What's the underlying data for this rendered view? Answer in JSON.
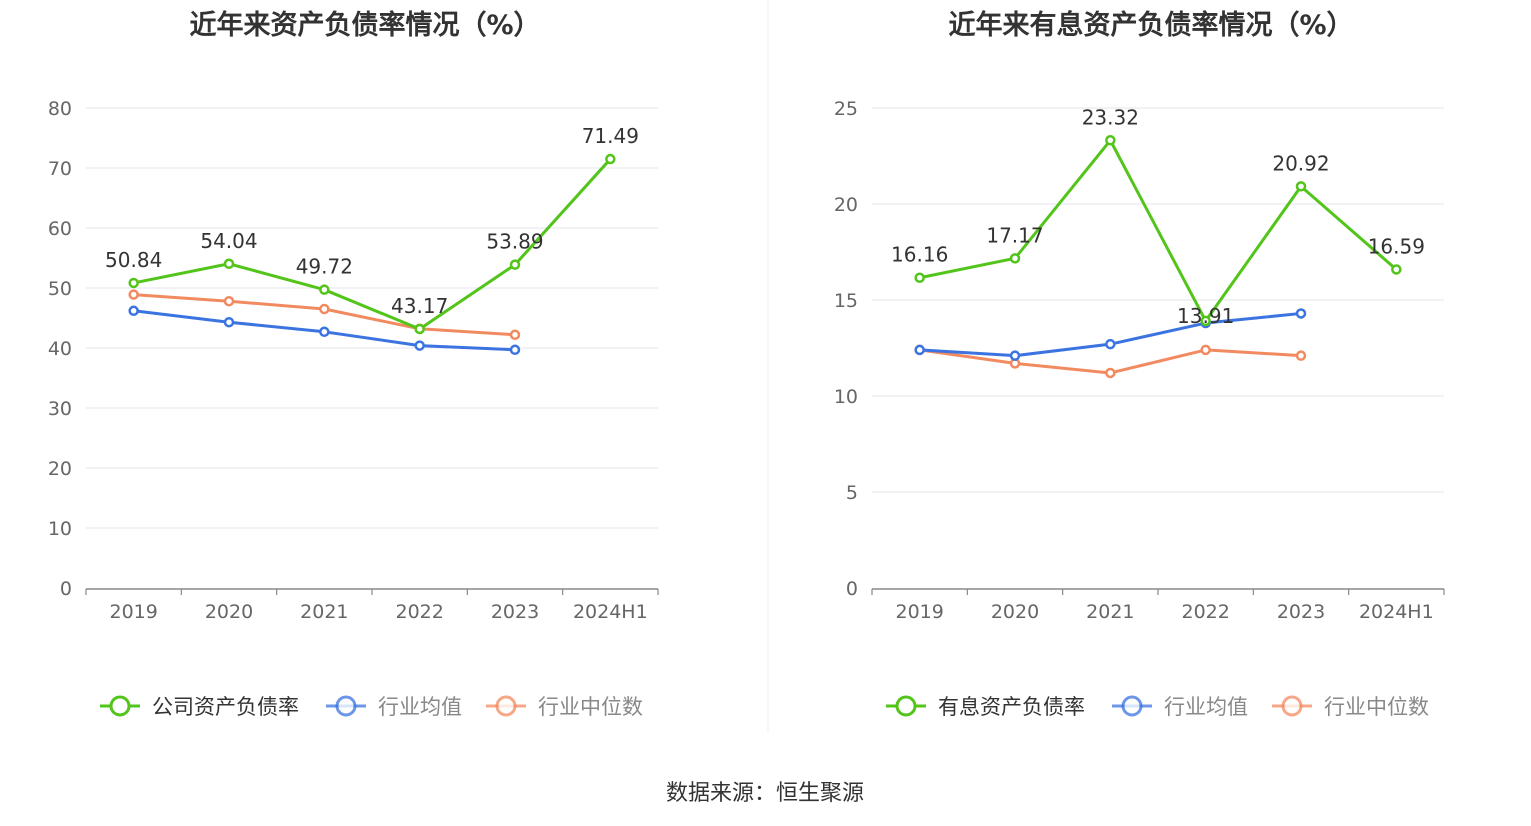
{
  "source": "数据来源：恒生聚源",
  "colors": {
    "green": "#52c41a",
    "blue": "#3b74e0",
    "orange": "#f28a60",
    "grid": "#e4e6ee",
    "axis": "#888888"
  },
  "chart_data": [
    {
      "type": "line",
      "title": "近年来资产负债率情况（%）",
      "categories": [
        "2019",
        "2020",
        "2021",
        "2022",
        "2023",
        "2024H1"
      ],
      "ylim": [
        0,
        80
      ],
      "yticks": [
        0,
        10,
        20,
        30,
        40,
        50,
        60,
        70,
        80
      ],
      "grid": true,
      "legend_position": "bottom",
      "series": [
        {
          "name": "公司资产负债率",
          "color": "#52c41a",
          "values": [
            50.84,
            54.04,
            49.72,
            43.17,
            53.89,
            71.49
          ],
          "labels": [
            "50.84",
            "54.04",
            "49.72",
            "43.17",
            "53.89",
            "71.49"
          ]
        },
        {
          "name": "行业均值",
          "color": "#3b74e0",
          "values": [
            46.2,
            44.3,
            42.7,
            40.4,
            39.7,
            null
          ]
        },
        {
          "name": "行业中位数",
          "color": "#f28a60",
          "values": [
            48.9,
            47.8,
            46.5,
            43.2,
            42.2,
            null
          ]
        }
      ]
    },
    {
      "type": "line",
      "title": "近年来有息资产负债率情况（%）",
      "categories": [
        "2019",
        "2020",
        "2021",
        "2022",
        "2023",
        "2024H1"
      ],
      "ylim": [
        0,
        25
      ],
      "yticks": [
        0,
        5,
        10,
        15,
        20,
        25
      ],
      "grid": true,
      "legend_position": "bottom",
      "series": [
        {
          "name": "有息资产负债率",
          "color": "#52c41a",
          "values": [
            16.16,
            17.17,
            23.32,
            13.91,
            20.92,
            16.59
          ],
          "labels": [
            "16.16",
            "17.17",
            "23.32",
            "13.91",
            "20.92",
            "16.59"
          ]
        },
        {
          "name": "行业均值",
          "color": "#3b74e0",
          "values": [
            12.4,
            12.1,
            12.7,
            13.8,
            14.3,
            null
          ]
        },
        {
          "name": "行业中位数",
          "color": "#f28a60",
          "values": [
            12.4,
            11.7,
            11.2,
            12.4,
            12.1,
            null
          ]
        }
      ]
    }
  ]
}
